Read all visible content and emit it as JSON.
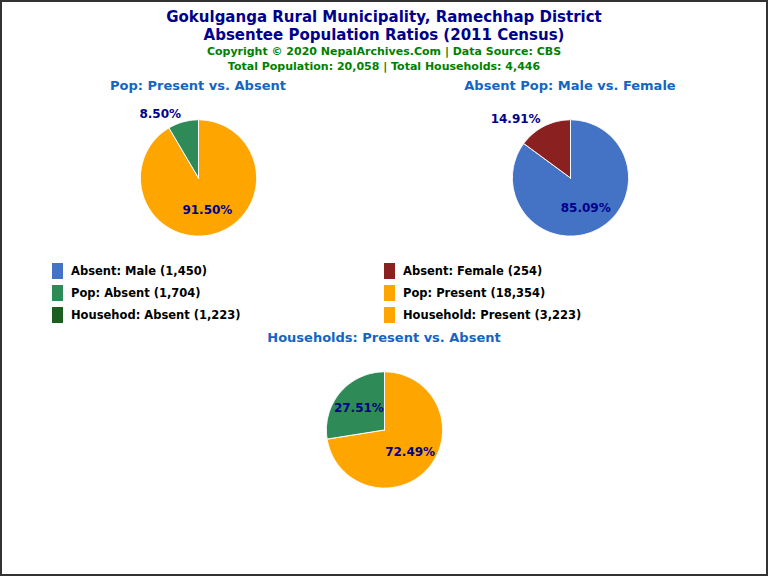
{
  "title": "Gokulganga Rural Municipality, Ramechhap District",
  "subtitle": "Absentee Population Ratios (2011 Census)",
  "annotations": [
    "Copyright © 2020 NepalArchives.Com | Data Source: CBS",
    "Total Population: 20,058 | Total Households: 4,446"
  ],
  "series": [
    {
      "name": "Absent: Male (1,450)",
      "color": "#4472C4"
    },
    {
      "name": "Absent: Female (254)",
      "color": "#8B2020"
    },
    {
      "name": "Pop: Absent (1,704)",
      "color": "#2E8B57"
    },
    {
      "name": "Pop: Present (18,354)",
      "color": "#FFA500"
    },
    {
      "name": "Househod: Absent (1,223)",
      "color": "#1B5E20"
    },
    {
      "name": "Household: Present (3,223)",
      "color": "#FFA500"
    }
  ],
  "chart_data": [
    {
      "type": "pie",
      "title": "Pop: Present vs. Absent",
      "values": [
        91.5,
        8.5
      ],
      "value_labels": [
        "91.50%",
        "8.50%"
      ],
      "colors": [
        "#FFA500",
        "#2E8B57"
      ],
      "data_labels": true
    },
    {
      "type": "pie",
      "title": "Absent Pop: Male vs. Female",
      "values": [
        85.09,
        14.91
      ],
      "value_labels": [
        "85.09%",
        "14.91%"
      ],
      "colors": [
        "#4472C4",
        "#8B2020"
      ],
      "data_labels": true
    },
    {
      "type": "pie",
      "title": "Households: Present vs. Absent",
      "values": [
        72.49,
        27.51
      ],
      "value_labels": [
        "72.49%",
        "27.51%"
      ],
      "colors": [
        "#FFA500",
        "#2E8B57"
      ],
      "data_labels": true
    }
  ]
}
